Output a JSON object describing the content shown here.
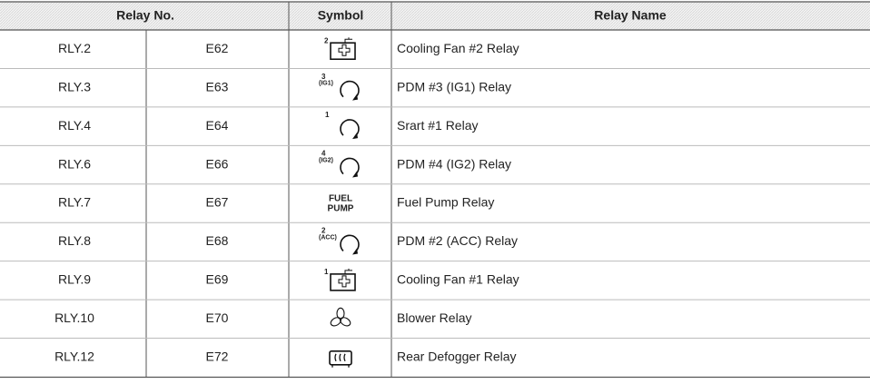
{
  "table": {
    "header": [
      "Relay No.",
      "Symbol",
      "Relay Name"
    ],
    "rows": [
      [
        "RLY.2",
        "E62",
        [
          "2"
        ],
        "Cooling Fan #2 Relay"
      ],
      [
        "RLY.3",
        "E63",
        [
          "3",
          "(IG1)"
        ],
        "PDM #3 (IG1) Relay"
      ],
      [
        "RLY.4",
        "E64",
        [
          "1"
        ],
        "Srart #1 Relay"
      ],
      [
        "RLY.6",
        "E66",
        [
          "4",
          "(IG2)"
        ],
        "PDM #4 (IG2) Relay"
      ],
      [
        "RLY.7",
        "E67",
        [
          "FUEL",
          "PUMP"
        ],
        "Fuel Pump Relay"
      ],
      [
        "RLY.8",
        "E68",
        [
          "2",
          "(ACC)"
        ],
        "PDM #2 (ACC) Relay"
      ],
      [
        "RLY.9",
        "E69",
        [
          "1"
        ],
        "Cooling Fan #1 Relay"
      ],
      [
        "RLY.10",
        "E70",
        [],
        "Blower Relay"
      ],
      [
        "RLY.12",
        "E72",
        [],
        "Rear Defogger Relay"
      ]
    ]
  }
}
